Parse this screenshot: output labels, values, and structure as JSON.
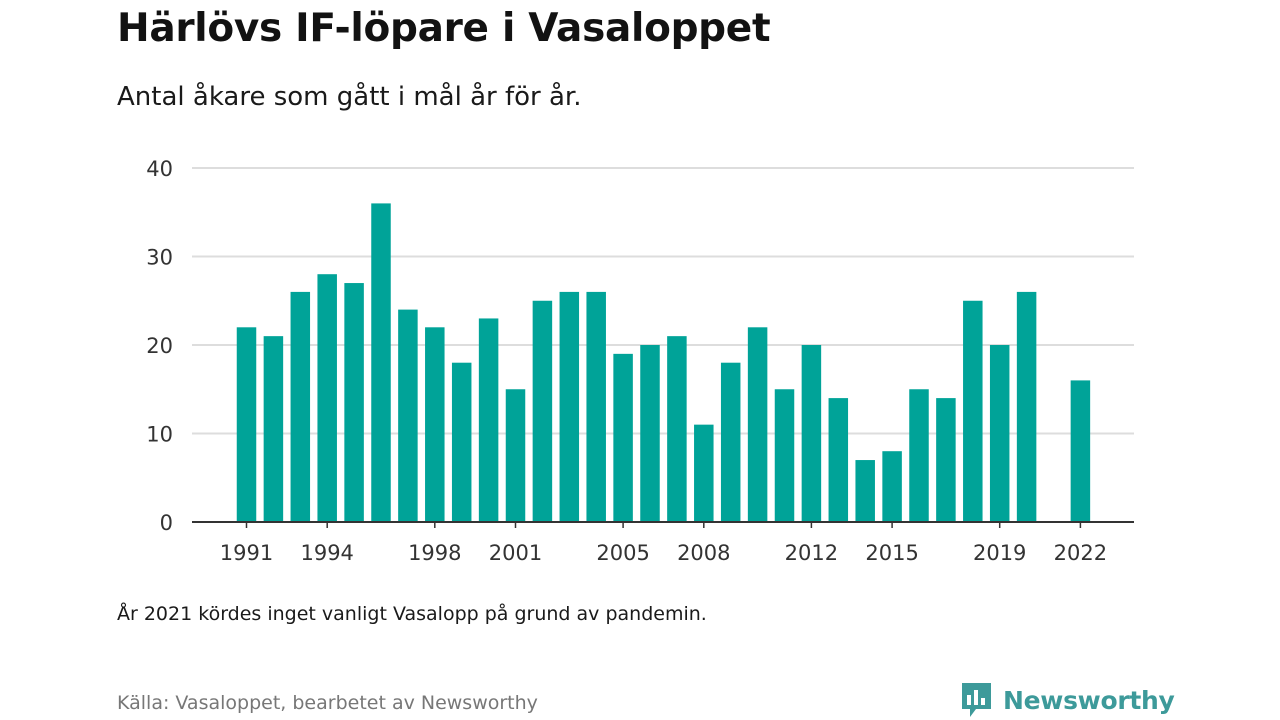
{
  "title": "Härlövs IF-löpare i Vasaloppet",
  "subtitle": "Antal åkare som gått i mål år för år.",
  "note": "År 2021 kördes inget vanligt Vasalopp på grund av pandemin.",
  "source": "Källa: Vasaloppet, bearbetet av Newsworthy",
  "brand": "Newsworthy",
  "colors": {
    "bar": "#00a398",
    "grid": "#dddddd",
    "axis": "#333333",
    "brand": "#3d9a9a"
  },
  "chart_data": {
    "type": "bar",
    "x": [
      1991,
      1992,
      1993,
      1994,
      1995,
      1996,
      1997,
      1998,
      1999,
      2000,
      2001,
      2002,
      2003,
      2004,
      2005,
      2006,
      2007,
      2008,
      2009,
      2010,
      2011,
      2012,
      2013,
      2014,
      2015,
      2016,
      2017,
      2018,
      2019,
      2020,
      2021,
      2022
    ],
    "values": [
      22,
      21,
      26,
      28,
      27,
      36,
      24,
      22,
      18,
      23,
      15,
      25,
      26,
      26,
      19,
      20,
      21,
      11,
      18,
      22,
      15,
      20,
      14,
      7,
      8,
      15,
      14,
      25,
      20,
      26,
      null,
      16
    ],
    "x_tick_labels": [
      "1991",
      "1994",
      "1998",
      "2001",
      "2005",
      "2008",
      "2012",
      "2015",
      "2019",
      "2022"
    ],
    "y_ticks": [
      0,
      10,
      20,
      30,
      40
    ],
    "ylim": [
      0,
      40
    ],
    "grid": true,
    "legend": "none"
  }
}
